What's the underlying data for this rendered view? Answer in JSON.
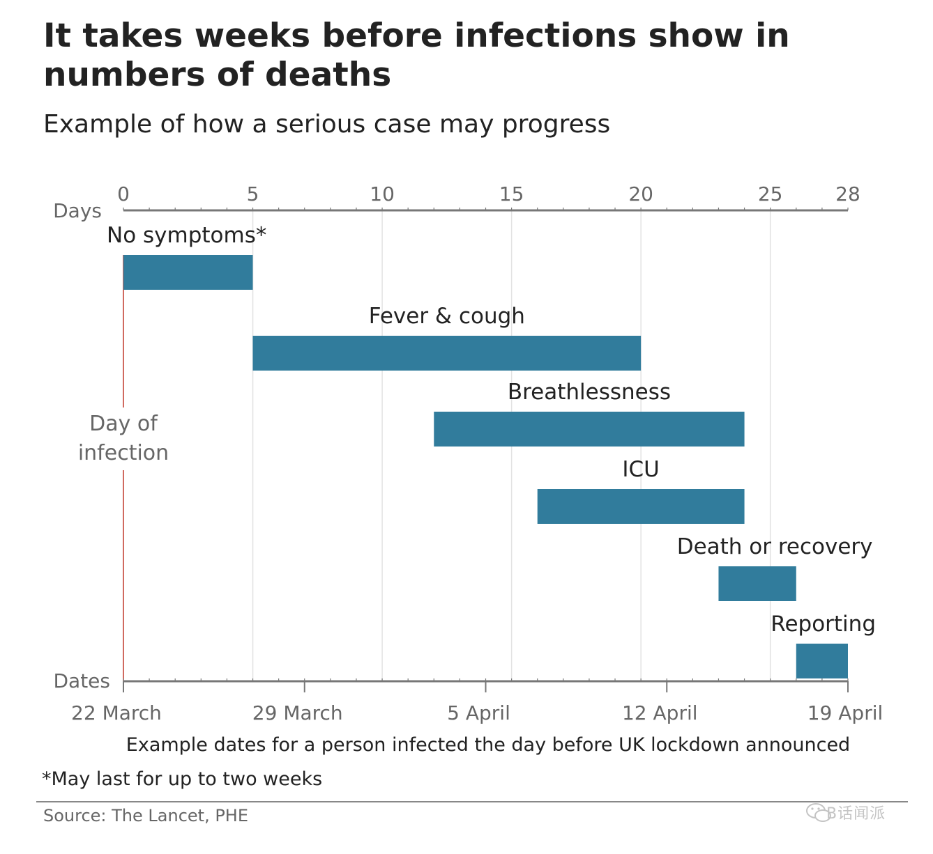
{
  "title": "It takes weeks before infections show in numbers of deaths",
  "subtitle": "Example of how a serious case may progress",
  "footnote": "*May last for up to two weeks",
  "source": "Source: The Lancet, PHE",
  "watermark": "B话闻派",
  "colors": {
    "bar": "#317c9c",
    "infection_line": "#c0392b",
    "axis": "#777777",
    "grid": "#e2e2e2",
    "text": "#222222",
    "muted": "#666666"
  },
  "chart_data": {
    "type": "bar",
    "orientation": "horizontal-range",
    "top_axis": {
      "label": "Days",
      "ticks": [
        0,
        5,
        10,
        15,
        20,
        25,
        28
      ],
      "range": [
        0,
        28
      ]
    },
    "bottom_axis": {
      "label": "Dates",
      "ticks": [
        {
          "day": 0,
          "label": "22 March"
        },
        {
          "day": 7,
          "label": "29 March"
        },
        {
          "day": 14,
          "label": "5 April"
        },
        {
          "day": 21,
          "label": "12 April"
        },
        {
          "day": 28,
          "label": "19 April"
        }
      ],
      "caption": "Example dates for a person infected the day before UK lockdown announced"
    },
    "marker": {
      "day": 0,
      "label_line1": "Day of",
      "label_line2": "infection"
    },
    "phases": [
      {
        "label": "No symptoms*",
        "start": 0,
        "end": 5
      },
      {
        "label": "Fever & cough",
        "start": 5,
        "end": 20
      },
      {
        "label": "Breathlessness",
        "start": 12,
        "end": 24
      },
      {
        "label": "ICU",
        "start": 16,
        "end": 24
      },
      {
        "label": "Death or recovery",
        "start": 23,
        "end": 26
      },
      {
        "label": "Reporting",
        "start": 26,
        "end": 28
      }
    ],
    "grid": true
  }
}
